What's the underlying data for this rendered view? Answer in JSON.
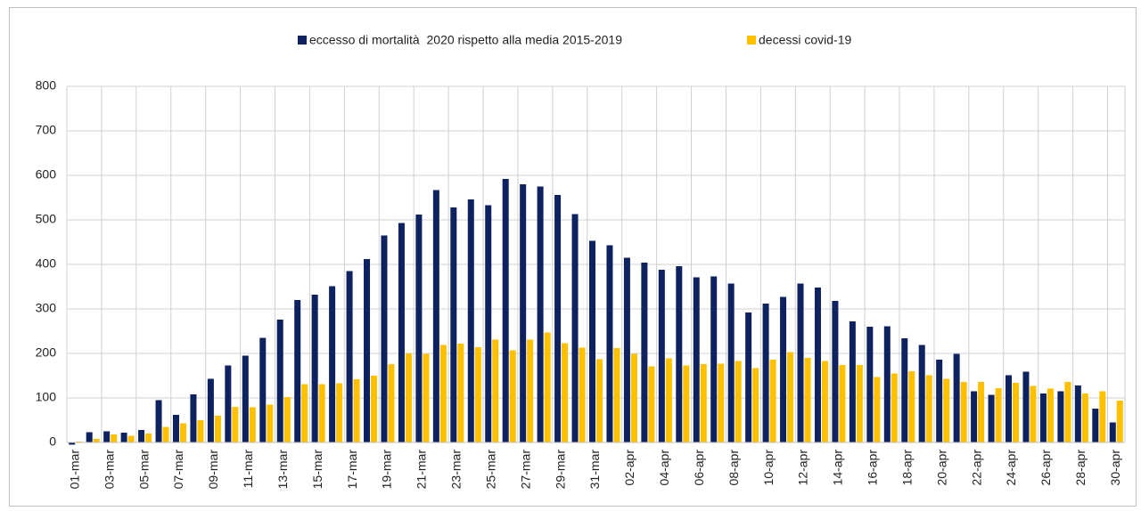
{
  "chart_data": {
    "type": "bar",
    "categories": [
      "01-mar",
      null,
      "03-mar",
      null,
      "05-mar",
      null,
      "07-mar",
      null,
      "09-mar",
      null,
      "11-mar",
      null,
      "13-mar",
      null,
      "15-mar",
      null,
      "17-mar",
      null,
      "19-mar",
      null,
      "21-mar",
      null,
      "23-mar",
      null,
      "25-mar",
      null,
      "27-mar",
      null,
      "29-mar",
      null,
      "31-mar",
      null,
      "02-apr",
      null,
      "04-apr",
      null,
      "06-apr",
      null,
      "08-apr",
      null,
      "10-apr",
      null,
      "12-apr",
      null,
      "14-apr",
      null,
      "16-apr",
      null,
      "18-apr",
      null,
      "20-apr",
      null,
      "22-apr",
      null,
      "24-apr",
      null,
      "26-apr",
      null,
      "28-apr",
      null,
      "30-apr"
    ],
    "series": [
      {
        "name": "eccesso di mortalità  2020 rispetto alla media 2015-2019",
        "color": "#0f2260",
        "values": [
          -5,
          23,
          25,
          22,
          28,
          95,
          62,
          108,
          143,
          173,
          195,
          235,
          276,
          320,
          332,
          351,
          385,
          412,
          465,
          493,
          512,
          567,
          528,
          546,
          533,
          592,
          580,
          575,
          556,
          513,
          453,
          443,
          415,
          404,
          388,
          396,
          371,
          373,
          357,
          292,
          312,
          327,
          357,
          348,
          318,
          272,
          260,
          261,
          234,
          219,
          186,
          199,
          115,
          107,
          151,
          159,
          110,
          115,
          128,
          76,
          45
        ]
      },
      {
        "name": "decessi covid-19",
        "color": "#ffc000",
        "values": [
          2,
          8,
          18,
          15,
          20,
          35,
          43,
          50,
          60,
          80,
          79,
          85,
          102,
          131,
          131,
          133,
          142,
          150,
          176,
          200,
          199,
          219,
          222,
          214,
          231,
          207,
          231,
          247,
          223,
          213,
          187,
          212,
          199,
          171,
          189,
          173,
          176,
          177,
          183,
          167,
          186,
          203,
          190,
          183,
          174,
          174,
          147,
          155,
          160,
          151,
          143,
          136,
          136,
          122,
          134,
          127,
          121,
          136,
          110,
          115,
          94
        ]
      }
    ],
    "ylim": [
      0,
      800
    ],
    "yticks": [
      0,
      100,
      200,
      300,
      400,
      500,
      600,
      700,
      800
    ],
    "grid": true
  }
}
